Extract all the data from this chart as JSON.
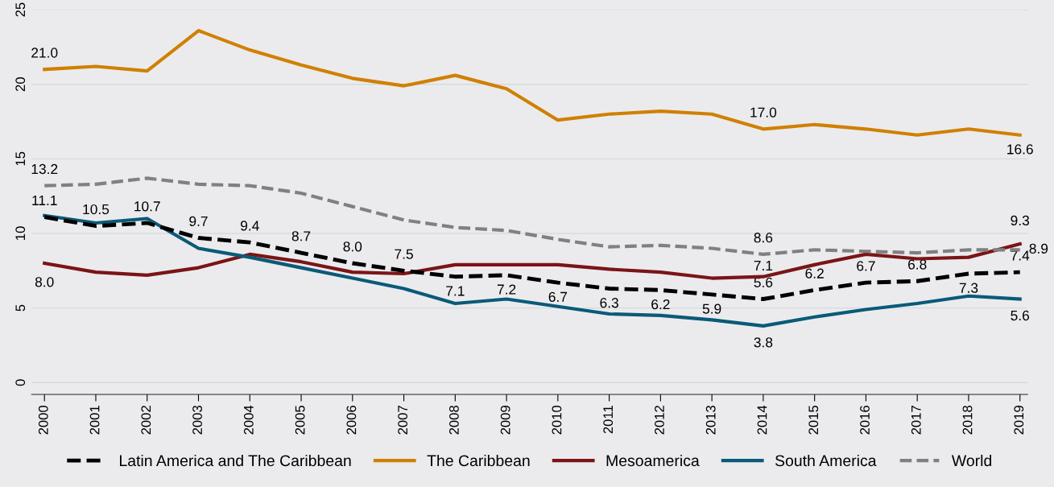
{
  "chart_data": {
    "type": "line",
    "categories": [
      "2000",
      "2001",
      "2002",
      "2003",
      "2004",
      "2005",
      "2006",
      "2007",
      "2008",
      "2009",
      "2010",
      "2011",
      "2012",
      "2013",
      "2014",
      "2015",
      "2016",
      "2017",
      "2018",
      "2019"
    ],
    "series": [
      {
        "name": "Latin America and The Caribbean",
        "color": "#000000",
        "line_style": "dashed",
        "values": [
          11.1,
          10.5,
          10.7,
          9.7,
          9.4,
          8.7,
          8.0,
          7.5,
          7.1,
          7.2,
          6.7,
          6.3,
          6.2,
          5.9,
          5.6,
          6.2,
          6.7,
          6.8,
          7.3,
          7.4
        ],
        "value_labels": [
          "11.1",
          "10.5",
          "10.7",
          "9.7",
          "9.4",
          "8.7",
          "8.0",
          "7.5",
          "7.1",
          "7.2",
          "6.7",
          "6.3",
          "6.2",
          "5.9",
          "5.6",
          "6.2",
          "6.7",
          "6.8",
          "7.3",
          "7.4"
        ]
      },
      {
        "name": "The Caribbean",
        "color": "#d08000",
        "line_style": "solid",
        "values": [
          21.0,
          21.2,
          20.9,
          23.6,
          22.3,
          21.3,
          20.4,
          19.9,
          20.6,
          19.7,
          17.6,
          18.0,
          18.2,
          18.0,
          17.0,
          17.3,
          17.0,
          16.6,
          17.0,
          16.6
        ],
        "value_labels": [
          "21.0",
          null,
          null,
          null,
          null,
          null,
          null,
          null,
          null,
          null,
          null,
          null,
          null,
          null,
          "17.0",
          null,
          null,
          null,
          null,
          "16.6"
        ]
      },
      {
        "name": "Mesoamerica",
        "color": "#7b1416",
        "line_style": "solid",
        "values": [
          8.0,
          7.4,
          7.2,
          7.7,
          8.6,
          8.1,
          7.4,
          7.3,
          7.9,
          7.9,
          7.9,
          7.6,
          7.4,
          7.0,
          7.1,
          7.9,
          8.6,
          8.3,
          8.4,
          9.3
        ],
        "value_labels": [
          "8.0",
          null,
          null,
          null,
          null,
          null,
          null,
          null,
          null,
          null,
          null,
          null,
          null,
          null,
          "7.1",
          null,
          null,
          null,
          null,
          "9.3"
        ]
      },
      {
        "name": "South America",
        "color": "#0a5a78",
        "line_style": "solid",
        "values": [
          11.2,
          10.7,
          11.0,
          9.0,
          8.4,
          7.7,
          7.0,
          6.3,
          5.3,
          5.6,
          5.1,
          4.6,
          4.5,
          4.2,
          3.8,
          4.4,
          4.9,
          5.3,
          5.8,
          5.6
        ],
        "value_labels": [
          null,
          null,
          null,
          null,
          null,
          null,
          null,
          null,
          null,
          null,
          null,
          null,
          null,
          null,
          "3.8",
          null,
          null,
          null,
          null,
          "5.6"
        ]
      },
      {
        "name": "World",
        "color": "#808080",
        "line_style": "dashed",
        "values": [
          13.2,
          13.3,
          13.7,
          13.3,
          13.2,
          12.7,
          11.8,
          10.9,
          10.4,
          10.2,
          9.6,
          9.1,
          9.2,
          9.0,
          8.6,
          8.9,
          8.8,
          8.7,
          8.9,
          8.9
        ],
        "value_labels": [
          "13.2",
          null,
          null,
          null,
          null,
          null,
          null,
          null,
          null,
          null,
          null,
          null,
          null,
          null,
          "8.6",
          null,
          null,
          null,
          null,
          "8.9"
        ]
      }
    ],
    "ylim": [
      -0.8,
      25
    ],
    "yticks": [
      0,
      5,
      10,
      15,
      20,
      25
    ],
    "grid": "y",
    "legend": "bottom",
    "marker": "none"
  }
}
